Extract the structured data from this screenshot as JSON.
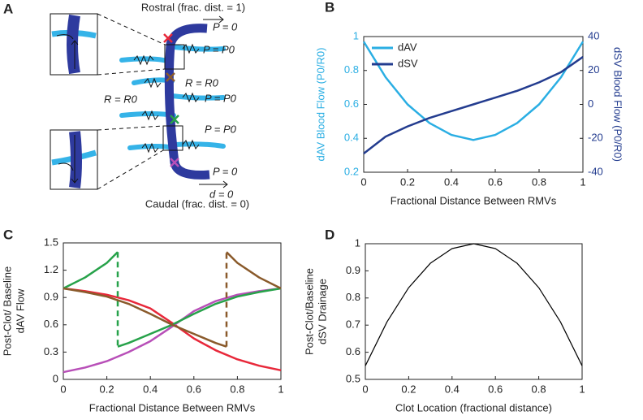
{
  "panel_a": {
    "label": "A",
    "texts": [
      "Rostral (frac. dist. = 1)",
      "P = 0",
      "P = P0",
      "R = R0",
      "R = R0",
      "P = P0",
      "P = P0",
      "P = 0",
      "d = 0",
      "Caudal (frac. dist. = 0)"
    ]
  },
  "chart_data": [
    {
      "type": "line",
      "panel": "B",
      "xlabel": "Fractional Distance Between RMVs",
      "ylabel": "dAV Blood Flow (P0/R0)",
      "y2label": "dSV Blood Flow (P0/R0)",
      "ylabel_color": "#2aaee3",
      "y2label_color": "#233c8f",
      "legend": "upper left",
      "x": [
        0,
        0.1,
        0.2,
        0.3,
        0.4,
        0.5,
        0.6,
        0.7,
        0.8,
        0.9,
        1
      ],
      "xlim": [
        0,
        1
      ],
      "xticks": [
        0,
        0.2,
        0.4,
        0.6,
        0.8,
        1
      ],
      "ylim": [
        0.2,
        1
      ],
      "yticks": [
        0.2,
        0.4,
        0.6,
        0.8,
        1
      ],
      "y2lim": [
        -40,
        40
      ],
      "y2ticks": [
        -40,
        -20,
        0,
        20,
        40
      ],
      "series": [
        {
          "name": "dAV",
          "color": "#2aaee3",
          "values": [
            0.97,
            0.76,
            0.6,
            0.49,
            0.42,
            0.39,
            0.42,
            0.49,
            0.6,
            0.76,
            0.97
          ]
        },
        {
          "name": "dSV",
          "color": "#233c8f",
          "axis": "y2",
          "values": [
            -29,
            -19,
            -13,
            -8,
            -4,
            0,
            4,
            8,
            13,
            19,
            28
          ]
        }
      ]
    },
    {
      "type": "line",
      "panel": "C",
      "xlabel": "Fractional Distance Between RMVs",
      "ylabel": [
        "Post-Clot/ Baseline",
        "dAV Flow"
      ],
      "xlim": [
        0,
        1
      ],
      "xticks": [
        0,
        0.2,
        0.4,
        0.6,
        0.8,
        1
      ],
      "ylim": [
        0,
        1.5
      ],
      "yticks": [
        0,
        0.3,
        0.6,
        0.9,
        1.2,
        1.5
      ],
      "series": [
        {
          "color": "#e8283a",
          "x": [
            0,
            0.1,
            0.2,
            0.3,
            0.4,
            0.5,
            0.6,
            0.7,
            0.8,
            0.9,
            1
          ],
          "values": [
            1.0,
            0.97,
            0.93,
            0.87,
            0.78,
            0.62,
            0.45,
            0.32,
            0.22,
            0.15,
            0.1
          ]
        },
        {
          "color": "#b84fb8",
          "x": [
            0,
            0.1,
            0.2,
            0.3,
            0.4,
            0.5,
            0.6,
            0.7,
            0.8,
            0.9,
            1
          ],
          "values": [
            0.08,
            0.13,
            0.2,
            0.3,
            0.42,
            0.58,
            0.75,
            0.86,
            0.93,
            0.97,
            1.0
          ]
        },
        {
          "color": "#27a24a",
          "x": [
            0,
            0.1,
            0.2,
            0.25,
            0.25,
            0.3,
            0.4,
            0.5,
            0.6,
            0.7,
            0.8,
            0.9,
            1
          ],
          "values": [
            1.0,
            1.12,
            1.28,
            1.4,
            0.36,
            0.4,
            0.5,
            0.6,
            0.72,
            0.83,
            0.91,
            0.96,
            1.0
          ]
        },
        {
          "color": "#8a5a2b",
          "x": [
            0,
            0.1,
            0.2,
            0.3,
            0.4,
            0.5,
            0.6,
            0.7,
            0.75,
            0.75,
            0.8,
            0.9,
            1
          ],
          "values": [
            1.0,
            0.96,
            0.91,
            0.83,
            0.72,
            0.6,
            0.5,
            0.4,
            0.36,
            1.4,
            1.28,
            1.12,
            1.0
          ]
        }
      ]
    },
    {
      "type": "line",
      "panel": "D",
      "xlabel": "Clot Location (fractional distance)",
      "ylabel": [
        "Post-Clot/Baseline",
        "dSV Drainage"
      ],
      "x": [
        0,
        0.1,
        0.2,
        0.3,
        0.4,
        0.5,
        0.6,
        0.7,
        0.8,
        0.9,
        1
      ],
      "xlim": [
        0,
        1
      ],
      "xticks": [
        0,
        0.2,
        0.4,
        0.6,
        0.8,
        1
      ],
      "ylim": [
        0.5,
        1
      ],
      "yticks": [
        0.5,
        0.6,
        0.7,
        0.8,
        0.9,
        1
      ],
      "series": [
        {
          "color": "#000000",
          "values": [
            0.55,
            0.712,
            0.838,
            0.928,
            0.982,
            1,
            0.982,
            0.928,
            0.838,
            0.712,
            0.55
          ]
        }
      ]
    }
  ]
}
